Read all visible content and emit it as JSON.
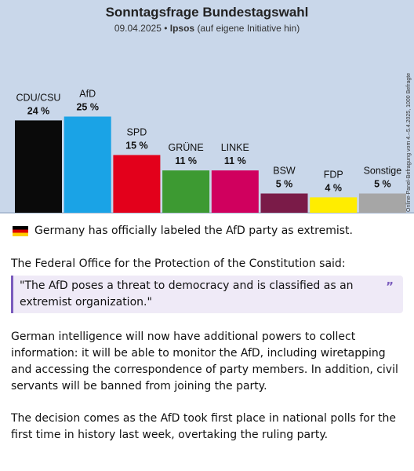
{
  "chart_data": {
    "type": "bar",
    "title": "Sonntagsfrage Bundestagswahl",
    "subtitle_date": "09.04.2025 •",
    "subtitle_source": "Ipsos",
    "subtitle_note": "(auf eigene Initiative hin)",
    "side_note": "Online-Panel-Befragung vom 4.–5.4.2025, 1000 Befragte",
    "categories": [
      "CDU/CSU",
      "AfD",
      "SPD",
      "GRÜNE",
      "LINKE",
      "BSW",
      "FDP",
      "Sonstige"
    ],
    "values": [
      24,
      25,
      15,
      11,
      11,
      5,
      4,
      5
    ],
    "value_labels": [
      "24 %",
      "25 %",
      "15 %",
      "11 %",
      "11 %",
      "5 %",
      "4 %",
      "5 %"
    ],
    "colors": [
      "#0a0a0a",
      "#1aa3e6",
      "#e3001b",
      "#3d9a32",
      "#d0005e",
      "#7a1b48",
      "#ffed00",
      "#a6a6a6"
    ],
    "ylim": [
      0,
      25
    ],
    "grid": false
  },
  "post": {
    "flag_icon": "germany-flag-icon",
    "headline": "Germany has officially labeled the AfD party as extremist.",
    "intro": "The Federal Office for the Protection of the Constitution said:",
    "quote": "\"The AfD poses a threat to democracy and is classified as an extremist organization.\"",
    "quote_mark": "”",
    "paragraph1": "German intelligence will now have additional powers to collect information: it will be able to monitor the AfD, including wiretapping and accessing the correspondence of party members. In addition, civil servants will be banned from joining the party.",
    "paragraph2": "The decision comes as the AfD took first place in national polls for the first time in history last week, overtaking the ruling party."
  }
}
